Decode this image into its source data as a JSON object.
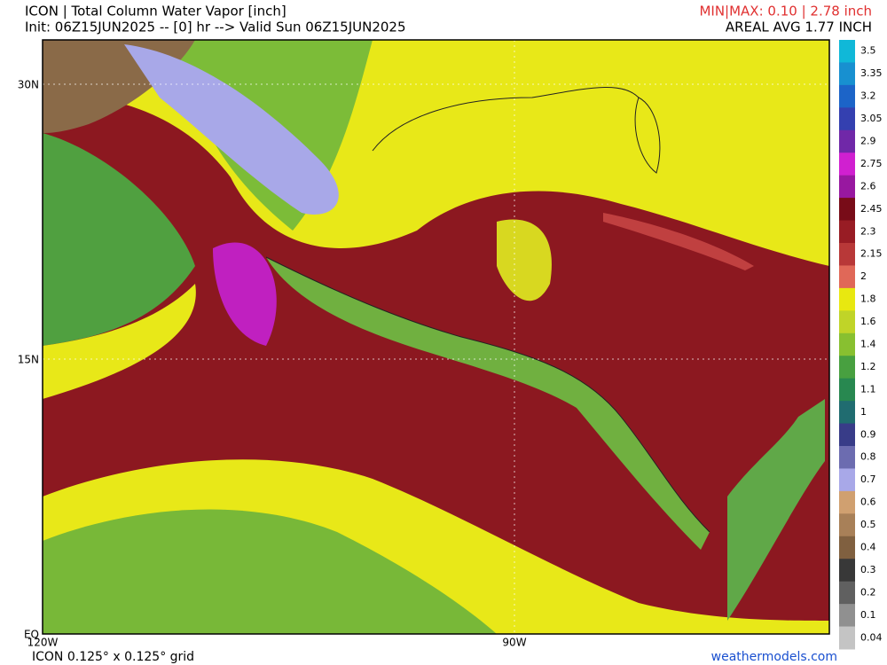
{
  "header": {
    "title": "ICON | Total Column Water Vapor [inch]",
    "subtitle": "Init: 06Z15JUN2025 -- [0] hr --> Valid Sun 06Z15JUN2025",
    "minmax": "MIN|MAX: 0.10 | 2.78 inch",
    "areal_avg": "AREAL AVG 1.77 INCH"
  },
  "map": {
    "lat_labels": [
      "30N",
      "15N",
      "EQ"
    ],
    "lon_labels": [
      "120W",
      "90W"
    ]
  },
  "colorbar": {
    "levels": [
      {
        "label": 3.5,
        "color": "#10b8d8"
      },
      {
        "label": 3.35,
        "color": "#1890d0"
      },
      {
        "label": 3.2,
        "color": "#1c64c8"
      },
      {
        "label": 3.05,
        "color": "#3440b0"
      },
      {
        "label": 2.9,
        "color": "#7028a8"
      },
      {
        "label": 2.75,
        "color": "#d020d0"
      },
      {
        "label": 2.6,
        "color": "#9818a0"
      },
      {
        "label": 2.45,
        "color": "#780c18"
      },
      {
        "label": 2.3,
        "color": "#981c24"
      },
      {
        "label": 2.15,
        "color": "#b83838"
      },
      {
        "label": 2,
        "color": "#e06858"
      },
      {
        "label": 1.8,
        "color": "#e8e810"
      },
      {
        "label": 1.6,
        "color": "#c0d428"
      },
      {
        "label": 1.4,
        "color": "#88c030"
      },
      {
        "label": 1.2,
        "color": "#48a040"
      },
      {
        "label": 1.1,
        "color": "#288850"
      },
      {
        "label": 1,
        "color": "#206c70"
      },
      {
        "label": 0.9,
        "color": "#383c88"
      },
      {
        "label": 0.8,
        "color": "#6c6cb0"
      },
      {
        "label": 0.7,
        "color": "#a8a8e8"
      },
      {
        "label": 0.6,
        "color": "#d0a070"
      },
      {
        "label": 0.5,
        "color": "#a88058"
      },
      {
        "label": 0.4,
        "color": "#806040"
      },
      {
        "label": 0.3,
        "color": "#383838"
      },
      {
        "label": 0.2,
        "color": "#606060"
      },
      {
        "label": 0.1,
        "color": "#909090"
      },
      {
        "label": 0.04,
        "color": "#c4c4c4"
      }
    ]
  },
  "footer": {
    "grid": "ICON 0.125° x 0.125° grid",
    "credit": "weathermodels.com"
  }
}
